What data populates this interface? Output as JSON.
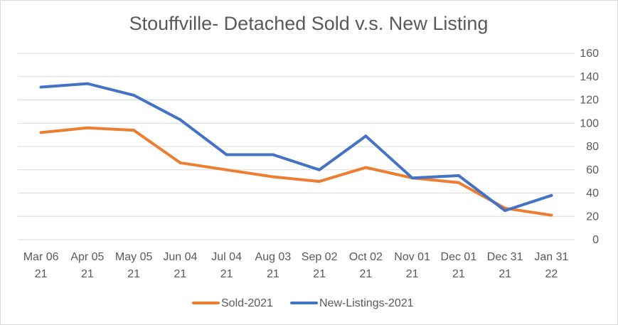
{
  "chart_data": {
    "type": "line",
    "title": "Stouffville- Detached Sold v.s. New Listing",
    "categories": [
      [
        "Mar 06",
        "21"
      ],
      [
        "Apr 05",
        "21"
      ],
      [
        "May 05",
        "21"
      ],
      [
        "Jun 04",
        "21"
      ],
      [
        "Jul 04",
        "21"
      ],
      [
        "Aug 03",
        "21"
      ],
      [
        "Sep 02",
        "21"
      ],
      [
        "Oct 02",
        "21"
      ],
      [
        "Nov 01",
        "21"
      ],
      [
        "Dec 01",
        "21"
      ],
      [
        "Dec 31",
        "21"
      ],
      [
        "Jan 31",
        "22"
      ]
    ],
    "series": [
      {
        "name": "Sold-2021",
        "color": "#ed7d31",
        "values": [
          92,
          96,
          94,
          66,
          60,
          54,
          50,
          62,
          53,
          49,
          27,
          21
        ]
      },
      {
        "name": "New-Listings-2021",
        "color": "#4472c4",
        "values": [
          131,
          134,
          124,
          103,
          73,
          73,
          60,
          89,
          53,
          55,
          25,
          38
        ]
      }
    ],
    "ylim": [
      0,
      160
    ],
    "yticks": [
      0,
      20,
      40,
      60,
      80,
      100,
      120,
      140,
      160
    ],
    "y_axis_side": "right",
    "grid": true,
    "legend_position": "bottom",
    "xlabel": "",
    "ylabel": ""
  }
}
